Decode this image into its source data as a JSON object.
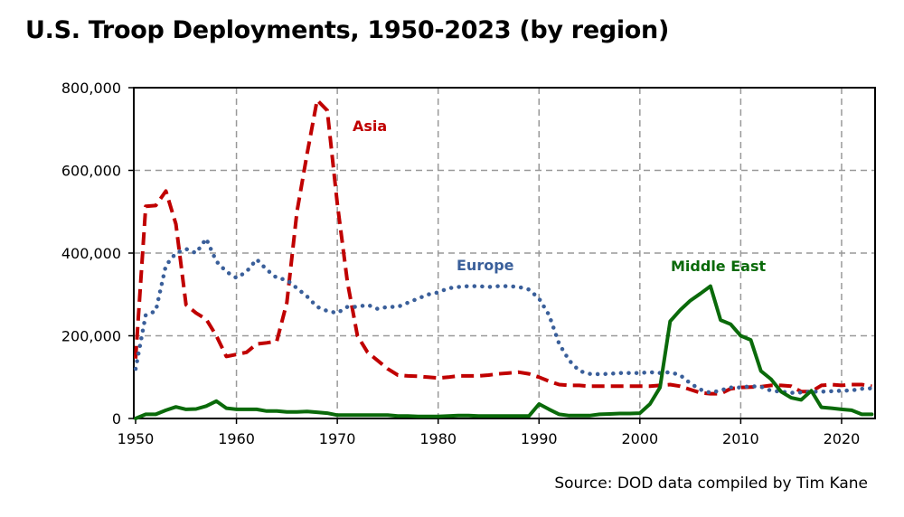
{
  "chart_data": {
    "type": "line",
    "title": "U.S. Troop Deployments, 1950-2023 (by region)",
    "source": "Source: DOD data compiled by Tim Kane",
    "xlim": [
      1950,
      2023.5
    ],
    "ylim": [
      0,
      800000
    ],
    "xticks": [
      1950,
      1960,
      1970,
      1980,
      1990,
      2000,
      2010,
      2020
    ],
    "yticks": [
      0,
      200000,
      400000,
      600000,
      800000
    ],
    "ytick_labels": [
      "0",
      "200,000",
      "400,000",
      "600,000",
      "800,000"
    ],
    "grid": true,
    "x": [
      1950,
      1951,
      1952,
      1953,
      1954,
      1955,
      1956,
      1957,
      1958,
      1959,
      1960,
      1961,
      1962,
      1963,
      1964,
      1965,
      1966,
      1967,
      1968,
      1969,
      1970,
      1971,
      1972,
      1973,
      1974,
      1975,
      1976,
      1977,
      1978,
      1979,
      1980,
      1981,
      1982,
      1983,
      1984,
      1985,
      1986,
      1987,
      1988,
      1989,
      1990,
      1991,
      1992,
      1993,
      1994,
      1995,
      1996,
      1997,
      1998,
      1999,
      2000,
      2001,
      2002,
      2003,
      2004,
      2005,
      2006,
      2007,
      2008,
      2009,
      2010,
      2011,
      2012,
      2013,
      2014,
      2015,
      2016,
      2017,
      2018,
      2019,
      2020,
      2021,
      2022,
      2023
    ],
    "series": [
      {
        "name": "Asia",
        "color": "#c00000",
        "style": "dashed",
        "values": [
          145000,
          513000,
          515000,
          550000,
          470000,
          275000,
          255000,
          240000,
          200000,
          150000,
          155000,
          160000,
          180000,
          183000,
          187000,
          280000,
          500000,
          640000,
          770000,
          745000,
          520000,
          330000,
          200000,
          160000,
          140000,
          120000,
          105000,
          103000,
          102000,
          100000,
          98000,
          100000,
          103000,
          103000,
          103000,
          105000,
          108000,
          110000,
          112000,
          108000,
          100000,
          90000,
          82000,
          80000,
          80000,
          78000,
          78000,
          78000,
          78000,
          78000,
          78000,
          78000,
          80000,
          82000,
          78000,
          70000,
          62000,
          60000,
          60000,
          72000,
          75000,
          76000,
          77000,
          80000,
          80000,
          78000,
          65000,
          65000,
          80000,
          82000,
          80000,
          82000,
          82000,
          78000
        ]
      },
      {
        "name": "Europe",
        "color": "#3a5f9a",
        "style": "dotted",
        "values": [
          120000,
          250000,
          260000,
          370000,
          400000,
          410000,
          400000,
          435000,
          380000,
          355000,
          340000,
          355000,
          385000,
          360000,
          340000,
          335000,
          315000,
          295000,
          270000,
          260000,
          255000,
          270000,
          270000,
          275000,
          265000,
          270000,
          270000,
          280000,
          290000,
          300000,
          305000,
          315000,
          318000,
          320000,
          320000,
          318000,
          320000,
          320000,
          318000,
          312000,
          290000,
          250000,
          180000,
          140000,
          115000,
          108000,
          107000,
          108000,
          110000,
          110000,
          110000,
          112000,
          110000,
          112000,
          105000,
          85000,
          70000,
          62000,
          68000,
          75000,
          75000,
          78000,
          77000,
          67000,
          65000,
          62000,
          63000,
          65000,
          65000,
          66000,
          67000,
          68000,
          72000,
          73000
        ]
      },
      {
        "name": "Middle East",
        "color": "#0a6a0a",
        "style": "solid",
        "values": [
          0,
          10000,
          10000,
          20000,
          28000,
          22000,
          23000,
          30000,
          42000,
          25000,
          22000,
          22000,
          22000,
          18000,
          18000,
          16000,
          16000,
          17000,
          15000,
          13000,
          8000,
          8000,
          8000,
          8000,
          8000,
          8000,
          6000,
          6000,
          5000,
          5000,
          5000,
          6000,
          7000,
          7000,
          6000,
          6000,
          6000,
          6000,
          6000,
          6000,
          35000,
          22000,
          10000,
          7000,
          7000,
          7000,
          10000,
          11000,
          12000,
          12000,
          13000,
          35000,
          75000,
          235000,
          262000,
          285000,
          302000,
          320000,
          238000,
          228000,
          200000,
          190000,
          115000,
          95000,
          65000,
          50000,
          45000,
          67000,
          27000,
          25000,
          22000,
          20000,
          10000,
          10000
        ]
      }
    ]
  }
}
